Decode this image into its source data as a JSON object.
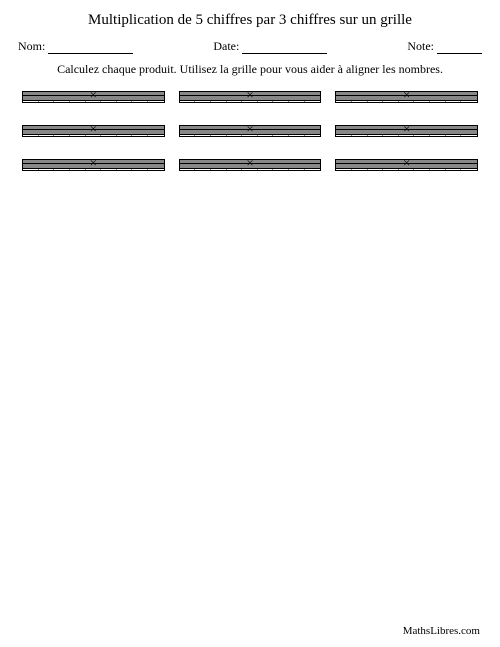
{
  "title": "Multiplication de 5 chiffres par 3 chiffres sur un grille",
  "labels": {
    "name": "Nom:",
    "date": "Date:",
    "note": "Note:"
  },
  "instructions": "Calculez chaque produit. Utilisez la grille pour vous aider à aligner les nombres.",
  "footer": "MathsLibres.com",
  "grid": {
    "rows": 10,
    "cols": 9,
    "multiplicand_digits": 5,
    "multiplier_digits": 3,
    "shade_color": "#dcdcf2",
    "background_color": "#ffffff",
    "border_color": "#000000",
    "cell_border_color": "#888888",
    "heavy_rule_rows": [
      3,
      8
    ],
    "times_symbol": "×",
    "times_row": 2,
    "times_col": 4,
    "shaded_cells": {
      "0": [
        0,
        1,
        2,
        3
      ],
      "1": [
        0,
        1,
        2,
        3,
        4
      ],
      "2": [
        0,
        1,
        2,
        3,
        4,
        5
      ],
      "3": [
        0,
        1,
        2,
        3
      ],
      "4": [
        0,
        1,
        2
      ],
      "5": [
        0,
        1
      ],
      "6": [
        0
      ],
      "7": [],
      "8": [
        0
      ],
      "9": []
    },
    "problems_layout": {
      "grid_rows": 3,
      "grid_cols": 3
    }
  }
}
